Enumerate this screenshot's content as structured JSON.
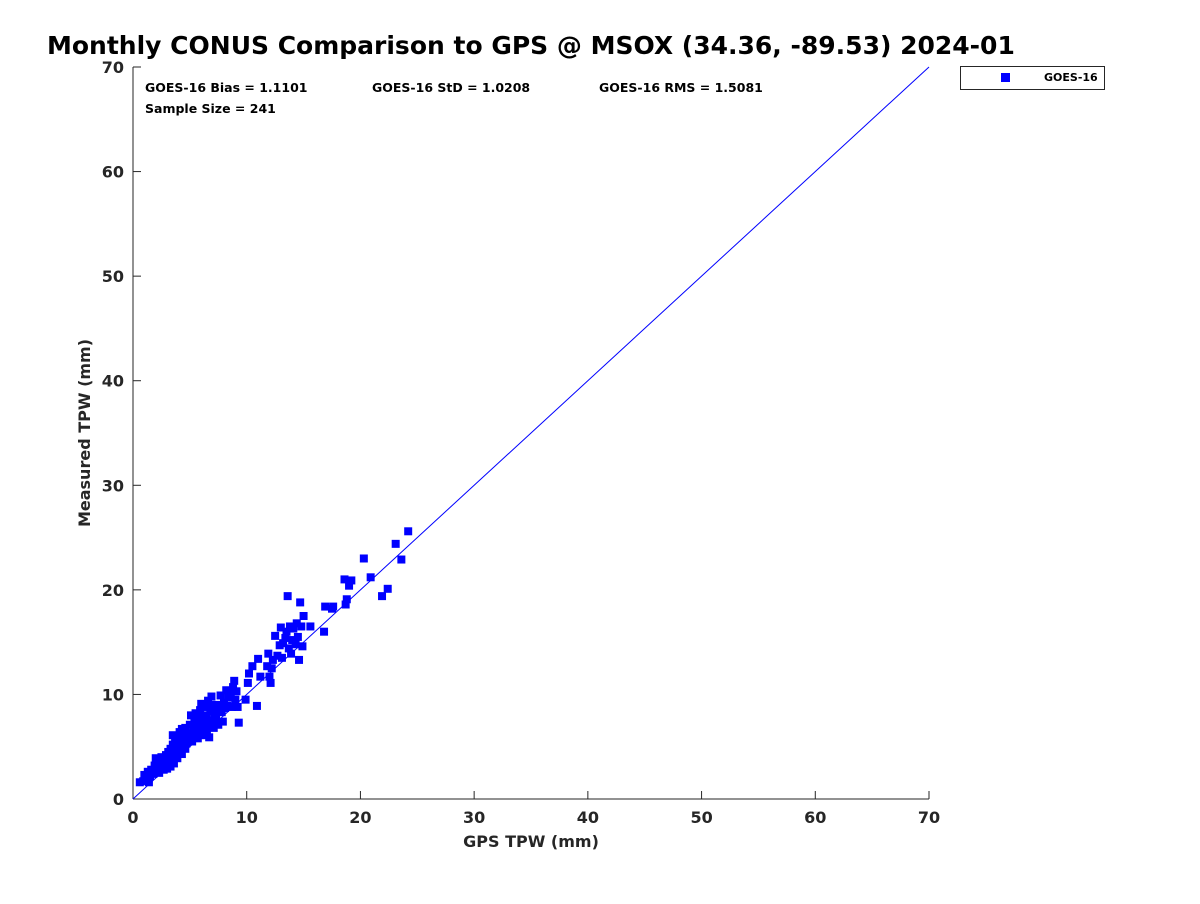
{
  "chart_data": {
    "type": "scatter",
    "title": "Monthly CONUS Comparison to GPS @ MSOX (34.36, -89.53) 2024-01",
    "xlabel": "GPS TPW (mm)",
    "ylabel": "Measured TPW (mm)",
    "xlim": [
      0,
      70
    ],
    "ylim": [
      0,
      70
    ],
    "xticks": [
      0,
      10,
      20,
      30,
      40,
      50,
      60,
      70
    ],
    "yticks": [
      0,
      10,
      20,
      30,
      40,
      50,
      60,
      70
    ],
    "grid": false,
    "legend_position": "top-right outside",
    "stats": [
      "GOES-16 Bias = 1.1101",
      "GOES-16 StD = 1.0208",
      "GOES-16 RMS = 1.5081",
      "Sample Size = 241"
    ],
    "reference_line": {
      "from": [
        0,
        0
      ],
      "to": [
        70,
        70
      ],
      "color": "#0000ff"
    },
    "series": [
      {
        "name": "GOES-16",
        "color": "#0000ff",
        "marker": "square",
        "points": [
          [
            0.6,
            1.6
          ],
          [
            0.9,
            1.7
          ],
          [
            1.0,
            2.3
          ],
          [
            1.1,
            1.9
          ],
          [
            1.3,
            2.6
          ],
          [
            1.4,
            1.6
          ],
          [
            1.5,
            2.2
          ],
          [
            1.6,
            2.8
          ],
          [
            1.8,
            2.4
          ],
          [
            1.9,
            3.2
          ],
          [
            2.0,
            3.9
          ],
          [
            2.1,
            3.0
          ],
          [
            2.2,
            3.6
          ],
          [
            2.3,
            2.5
          ],
          [
            2.4,
            3.4
          ],
          [
            2.5,
            4.0
          ],
          [
            2.6,
            3.1
          ],
          [
            2.7,
            2.8
          ],
          [
            2.8,
            3.7
          ],
          [
            2.9,
            4.2
          ],
          [
            3.0,
            3.3
          ],
          [
            3.0,
            2.9
          ],
          [
            3.1,
            4.5
          ],
          [
            3.2,
            3.8
          ],
          [
            3.3,
            3.1
          ],
          [
            3.3,
            4.8
          ],
          [
            3.4,
            4.1
          ],
          [
            3.5,
            5.2
          ],
          [
            3.5,
            6.1
          ],
          [
            3.6,
            3.4
          ],
          [
            3.7,
            4.4
          ],
          [
            3.7,
            5.5
          ],
          [
            3.8,
            4.9
          ],
          [
            3.9,
            3.9
          ],
          [
            4.0,
            5.8
          ],
          [
            4.0,
            4.6
          ],
          [
            4.1,
            6.4
          ],
          [
            4.2,
            5.1
          ],
          [
            4.3,
            4.3
          ],
          [
            4.3,
            6.7
          ],
          [
            4.4,
            5.5
          ],
          [
            4.5,
            6.0
          ],
          [
            4.6,
            4.8
          ],
          [
            4.6,
            6.8
          ],
          [
            4.7,
            5.3
          ],
          [
            4.8,
            6.3
          ],
          [
            4.9,
            5.7
          ],
          [
            5.0,
            7.1
          ],
          [
            5.0,
            6.0
          ],
          [
            5.1,
            8.0
          ],
          [
            5.2,
            5.5
          ],
          [
            5.3,
            6.6
          ],
          [
            5.4,
            7.4
          ],
          [
            5.5,
            6.1
          ],
          [
            5.5,
            8.2
          ],
          [
            5.6,
            7.0
          ],
          [
            5.7,
            6.4
          ],
          [
            5.7,
            5.8
          ],
          [
            5.8,
            7.7
          ],
          [
            5.9,
            8.5
          ],
          [
            6.0,
            6.8
          ],
          [
            6.0,
            9.1
          ],
          [
            6.1,
            7.3
          ],
          [
            6.2,
            6.1
          ],
          [
            6.2,
            8.0
          ],
          [
            6.3,
            7.6
          ],
          [
            6.4,
            8.8
          ],
          [
            6.5,
            6.6
          ],
          [
            6.5,
            7.9
          ],
          [
            6.6,
            9.4
          ],
          [
            6.7,
            7.2
          ],
          [
            6.7,
            5.9
          ],
          [
            6.8,
            8.4
          ],
          [
            6.9,
            9.8
          ],
          [
            7.0,
            7.5
          ],
          [
            7.0,
            8.9
          ],
          [
            7.1,
            6.8
          ],
          [
            7.2,
            8.2
          ],
          [
            7.3,
            9.0
          ],
          [
            7.3,
            7.7
          ],
          [
            7.4,
            8.6
          ],
          [
            7.5,
            7.1
          ],
          [
            7.6,
            8.9
          ],
          [
            7.7,
            9.9
          ],
          [
            7.8,
            8.3
          ],
          [
            7.9,
            7.4
          ],
          [
            8.0,
            9.2
          ],
          [
            8.1,
            8.7
          ],
          [
            8.2,
            10.4
          ],
          [
            8.3,
            8.9
          ],
          [
            8.4,
            9.7
          ],
          [
            8.6,
            10.1
          ],
          [
            8.7,
            8.8
          ],
          [
            8.8,
            10.7
          ],
          [
            8.9,
            11.3
          ],
          [
            9.0,
            9.5
          ],
          [
            9.1,
            10.3
          ],
          [
            9.2,
            8.8
          ],
          [
            9.3,
            7.3
          ],
          [
            9.9,
            9.5
          ],
          [
            10.1,
            11.1
          ],
          [
            10.2,
            12.0
          ],
          [
            10.5,
            12.7
          ],
          [
            10.9,
            8.9
          ],
          [
            11.0,
            13.4
          ],
          [
            11.2,
            11.7
          ],
          [
            11.8,
            12.7
          ],
          [
            11.9,
            13.9
          ],
          [
            12.0,
            11.7
          ],
          [
            12.1,
            11.1
          ],
          [
            12.2,
            12.5
          ],
          [
            12.3,
            13.3
          ],
          [
            12.5,
            15.6
          ],
          [
            12.7,
            13.7
          ],
          [
            12.9,
            14.7
          ],
          [
            13.0,
            16.4
          ],
          [
            13.1,
            13.5
          ],
          [
            13.2,
            14.9
          ],
          [
            13.4,
            15.4
          ],
          [
            13.5,
            16.0
          ],
          [
            13.6,
            19.4
          ],
          [
            13.7,
            14.4
          ],
          [
            13.8,
            16.5
          ],
          [
            13.9,
            13.9
          ],
          [
            14.0,
            15.2
          ],
          [
            14.1,
            16.3
          ],
          [
            14.3,
            14.8
          ],
          [
            14.4,
            16.8
          ],
          [
            14.5,
            15.5
          ],
          [
            14.6,
            13.3
          ],
          [
            14.7,
            18.8
          ],
          [
            14.8,
            16.5
          ],
          [
            14.9,
            14.6
          ],
          [
            15.0,
            17.5
          ],
          [
            15.6,
            16.5
          ],
          [
            16.8,
            16.0
          ],
          [
            16.9,
            18.4
          ],
          [
            17.5,
            18.2
          ],
          [
            17.6,
            18.4
          ],
          [
            18.6,
            21.0
          ],
          [
            18.7,
            18.6
          ],
          [
            18.8,
            19.1
          ],
          [
            19.0,
            20.4
          ],
          [
            19.2,
            20.9
          ],
          [
            20.3,
            23.0
          ],
          [
            20.9,
            21.2
          ],
          [
            21.9,
            19.4
          ],
          [
            22.4,
            20.1
          ],
          [
            23.1,
            24.4
          ],
          [
            23.6,
            22.9
          ],
          [
            24.2,
            25.6
          ]
        ]
      }
    ]
  }
}
